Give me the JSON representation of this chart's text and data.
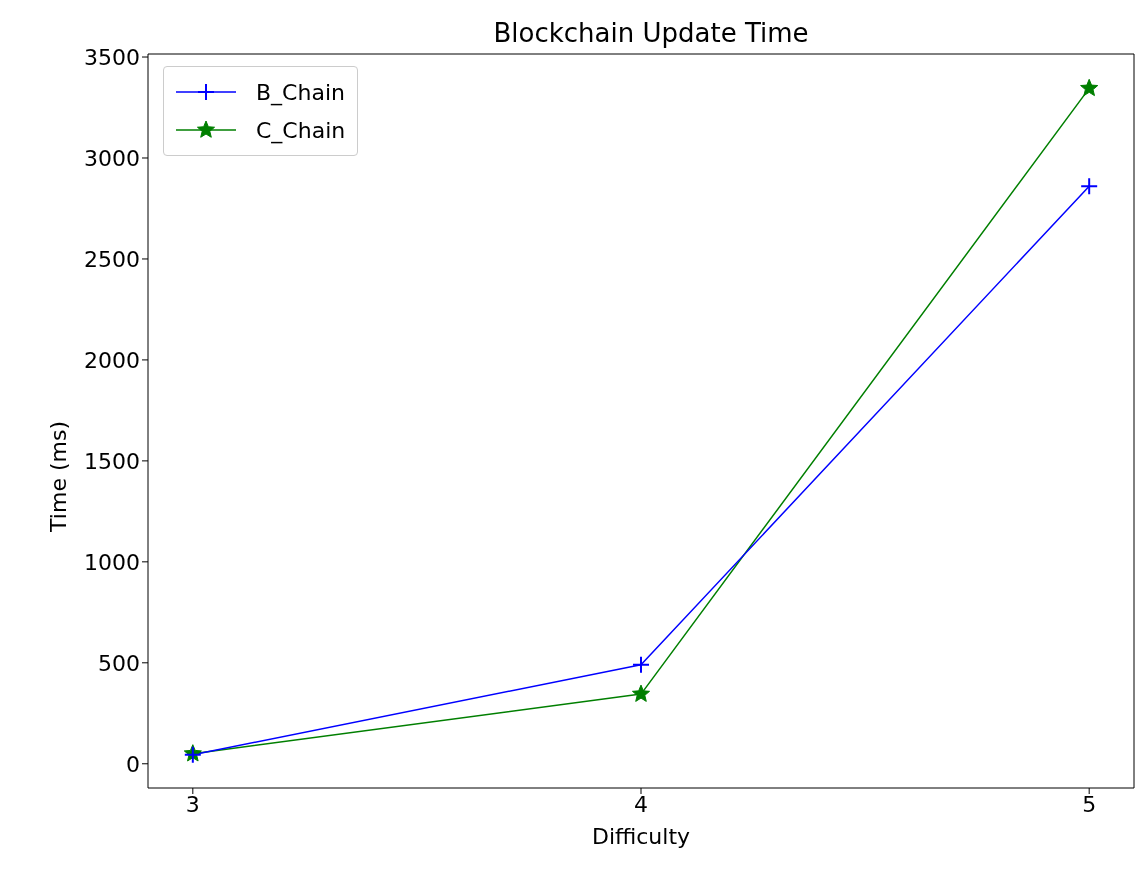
{
  "chart_data": {
    "type": "line",
    "title": "Blockchain Update Time",
    "xlabel": "Difficulty",
    "ylabel": "Time (ms)",
    "x": [
      3,
      4,
      5
    ],
    "series": [
      {
        "name": "B_Chain",
        "color": "#0000ff",
        "marker": "cross",
        "values": [
          45,
          490,
          2860
        ]
      },
      {
        "name": "C_Chain",
        "color": "#007f00",
        "marker": "star",
        "values": [
          50,
          345,
          3345
        ]
      }
    ],
    "xlim": [
      2.9,
      5.1
    ],
    "xticks": [
      3,
      4,
      5
    ],
    "ylim": [
      -120,
      3515
    ],
    "yticks": [
      0,
      500,
      1000,
      1500,
      2000,
      2500,
      3000,
      3500
    ],
    "grid": false,
    "legend": "top left"
  }
}
